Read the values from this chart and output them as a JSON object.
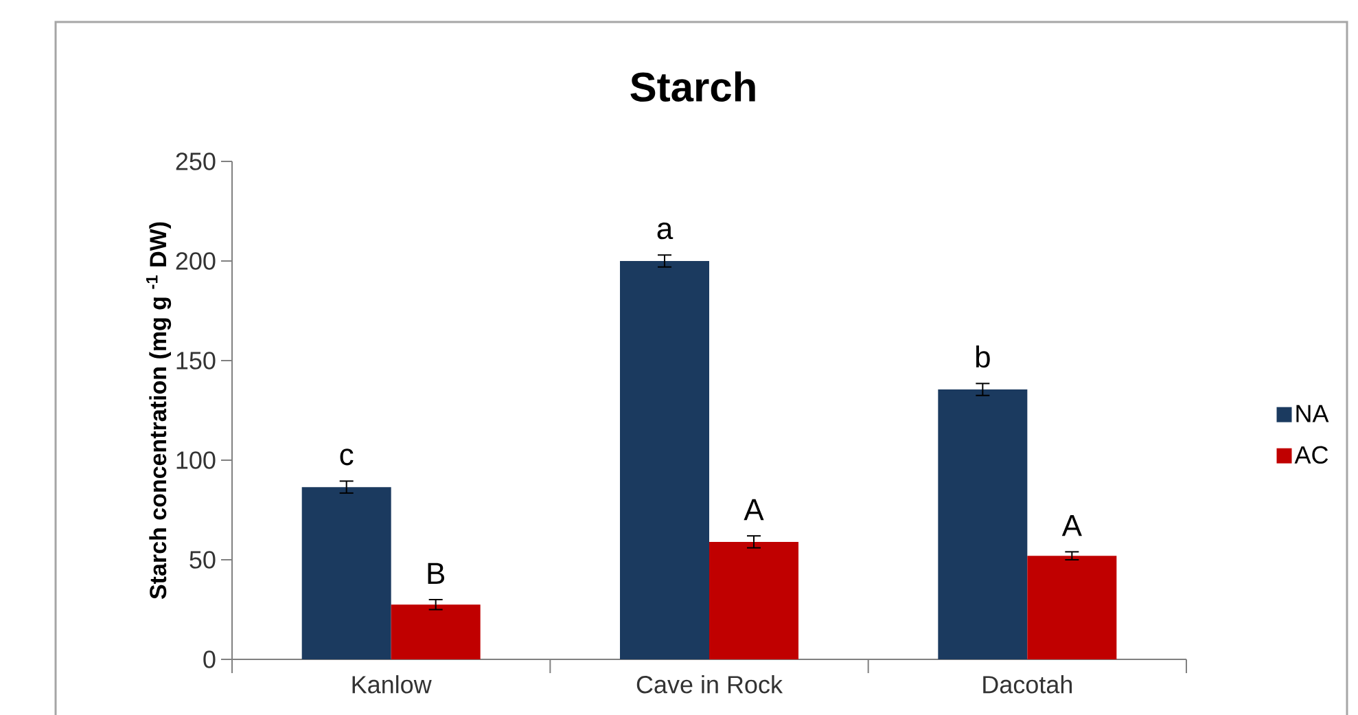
{
  "chart_data": {
    "type": "bar",
    "title": "Starch",
    "ylabel": "Starch concentration (mg g $^{-1}$ DW)",
    "categories": [
      "Kanlow",
      "Cave in Rock",
      "Dacotah"
    ],
    "series": [
      {
        "name": "NA",
        "color": "#1b3a5f",
        "values": [
          86.5,
          200,
          135.5
        ],
        "errors": [
          3,
          3,
          3
        ]
      },
      {
        "name": "AC",
        "color": "#c00000",
        "values": [
          27.5,
          59,
          52
        ],
        "errors": [
          2.5,
          3,
          2
        ]
      }
    ],
    "ylim": [
      0,
      250
    ],
    "yticks": [
      0,
      50,
      100,
      150,
      200,
      250
    ],
    "legend": "right",
    "annotations": [
      "c",
      "a",
      "b",
      "B",
      "A",
      "A"
    ]
  }
}
